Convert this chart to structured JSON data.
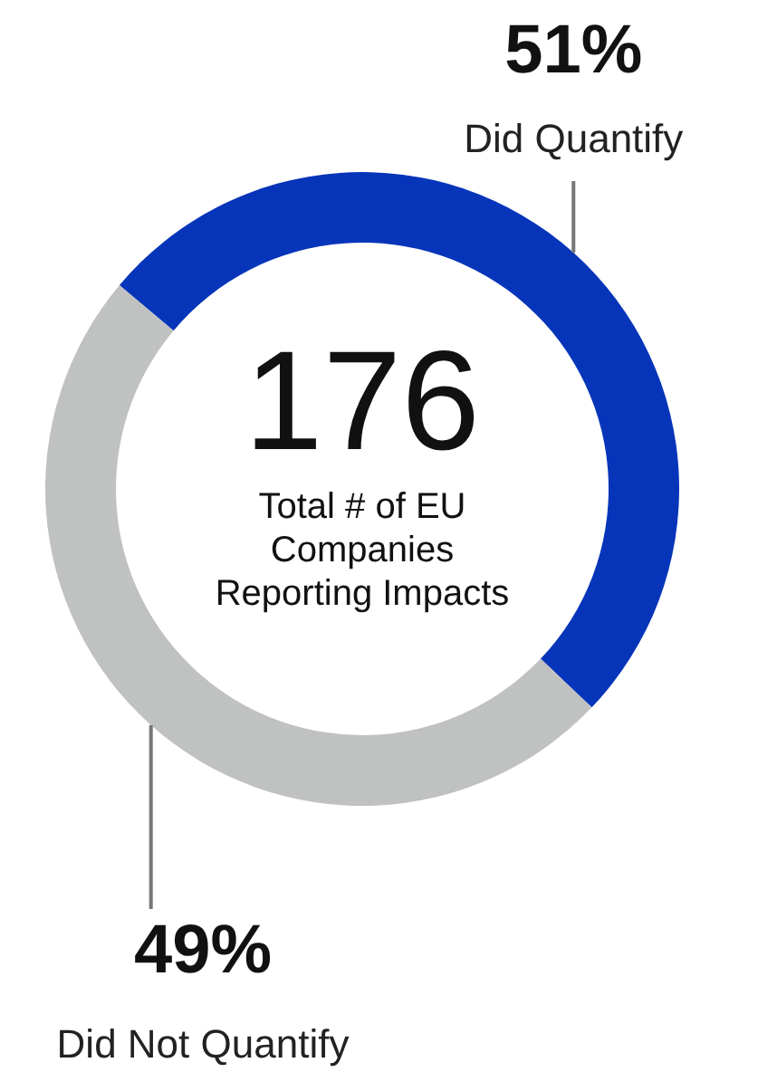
{
  "chart_data": {
    "type": "donut",
    "title": "Total # of EU Companies Reporting Impacts",
    "annotations": [
      "176"
    ],
    "categories": [
      "Did Quantify",
      "Did Not Quantify"
    ],
    "values": [
      51,
      49
    ],
    "colors": [
      "#0635b9",
      "#c0c1c1"
    ],
    "value_labels": [
      "51%",
      "49%"
    ]
  }
}
